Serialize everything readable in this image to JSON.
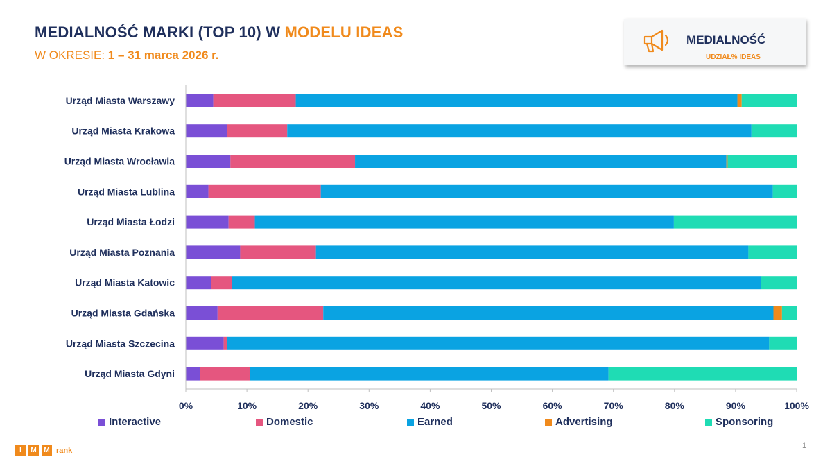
{
  "header": {
    "title_main": "MEDIALNOŚĆ MARKI (TOP 10) W ",
    "title_highlight": "MODELU IDEAS",
    "subtitle_prefix": "W OKRESIE: ",
    "subtitle_period": "1 – 31 marca 2026 r."
  },
  "badge": {
    "title": "MEDIALNOŚĆ",
    "subtitle": "UDZIAŁ% IDEAS",
    "icon": "megaphone-icon"
  },
  "footer": {
    "logo_letters": [
      "I",
      "M",
      "M"
    ],
    "logo_word": "rank",
    "page_number": "1"
  },
  "colors": {
    "Interactive": "#7a4fd6",
    "Domestic": "#e5567f",
    "Earned": "#0aa3e2",
    "Advertising": "#f08a1c",
    "Sponsoring": "#1fdcb4",
    "title": "#1f2f5c",
    "accent": "#f08a1c"
  },
  "chart_data": {
    "type": "bar",
    "orientation": "horizontal",
    "stacked": true,
    "percent": true,
    "categories": [
      "Urząd Miasta Warszawy",
      "Urząd Miasta Krakowa",
      "Urząd Miasta Wrocławia",
      "Urząd Miasta Lublina",
      "Urząd Miasta Łodzi",
      "Urząd Miasta Poznania",
      "Urząd Miasta Katowic",
      "Urząd Miasta Gdańska",
      "Urząd Miasta Szczecina",
      "Urząd Miasta Gdyni"
    ],
    "series": [
      {
        "name": "Interactive",
        "values": [
          4.5,
          6.8,
          7.3,
          3.7,
          7.0,
          8.9,
          4.2,
          5.2,
          6.2,
          2.3
        ]
      },
      {
        "name": "Domestic",
        "values": [
          13.5,
          9.8,
          20.4,
          18.4,
          4.3,
          12.4,
          3.3,
          17.3,
          0.6,
          8.2
        ]
      },
      {
        "name": "Earned",
        "values": [
          72.3,
          76.0,
          60.8,
          74.0,
          68.6,
          70.8,
          86.7,
          73.7,
          88.7,
          58.7
        ]
      },
      {
        "name": "Advertising",
        "values": [
          0.7,
          0.0,
          0.2,
          0.0,
          0.0,
          0.0,
          0.0,
          1.4,
          0.0,
          0.0
        ]
      },
      {
        "name": "Sponsoring",
        "values": [
          9.0,
          7.4,
          11.3,
          3.9,
          20.1,
          7.9,
          5.8,
          2.4,
          4.5,
          30.8
        ]
      }
    ],
    "x_ticks": [
      "0%",
      "10%",
      "20%",
      "30%",
      "40%",
      "50%",
      "60%",
      "70%",
      "80%",
      "90%",
      "100%"
    ],
    "xlim": [
      0,
      100
    ],
    "grid": false,
    "legend_position": "bottom"
  }
}
